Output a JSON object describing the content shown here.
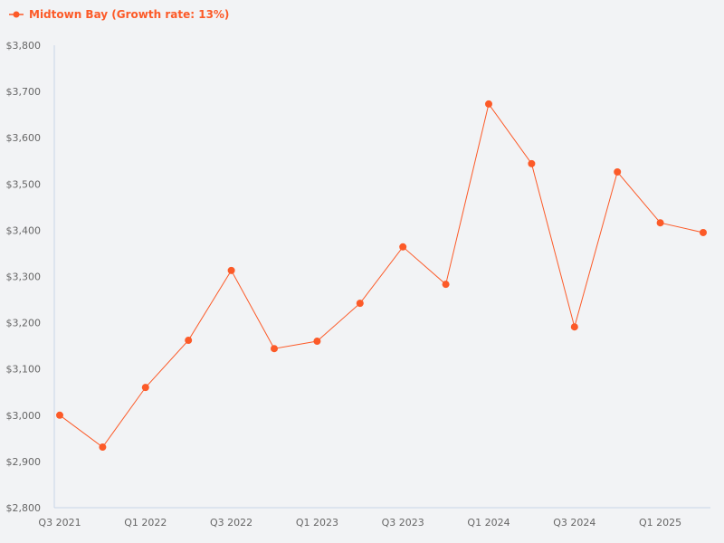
{
  "legend": {
    "label": "Midtown Bay (Growth rate: 13%)",
    "marker": "line-dot-icon"
  },
  "colors": {
    "series": "#fc5a28",
    "axis": "#c8d4e8",
    "background": "#f2f3f5",
    "tick_text": "#666666"
  },
  "chart_data": {
    "type": "line",
    "title": "",
    "xlabel": "",
    "ylabel": "",
    "ylim": [
      2800,
      3800
    ],
    "grid": false,
    "legend_position": "top-left",
    "y_ticks": [
      "$2,800",
      "$2,900",
      "$3,000",
      "$3,100",
      "$3,200",
      "$3,300",
      "$3,400",
      "$3,500",
      "$3,600",
      "$3,700",
      "$3,800"
    ],
    "x_tick_labels": [
      "Q3 2021",
      "Q1 2022",
      "Q3 2022",
      "Q1 2023",
      "Q3 2023",
      "Q1 2024",
      "Q3 2024",
      "Q1 2025"
    ],
    "categories": [
      "Q3 2021",
      "Q4 2021",
      "Q1 2022",
      "Q2 2022",
      "Q3 2022",
      "Q4 2022",
      "Q1 2023",
      "Q2 2023",
      "Q3 2023",
      "Q4 2023",
      "Q1 2024",
      "Q2 2024",
      "Q3 2024",
      "Q4 2024",
      "Q1 2025",
      "Q2 2025"
    ],
    "series": [
      {
        "name": "Midtown Bay (Growth rate: 13%)",
        "values": [
          3000,
          2931,
          3060,
          3162,
          3313,
          3144,
          3160,
          3242,
          3364,
          3283,
          3673,
          3544,
          3191,
          3526,
          3416,
          3395
        ]
      }
    ]
  }
}
